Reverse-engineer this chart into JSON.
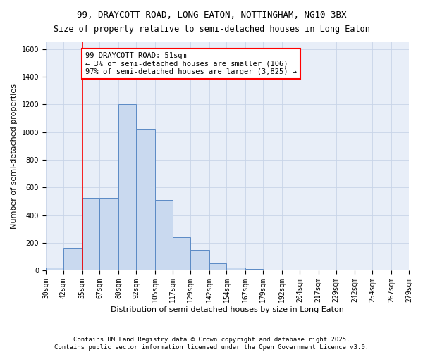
{
  "title": "99, DRAYCOTT ROAD, LONG EATON, NOTTINGHAM, NG10 3BX",
  "subtitle": "Size of property relative to semi-detached houses in Long Eaton",
  "xlabel": "Distribution of semi-detached houses by size in Long Eaton",
  "ylabel": "Number of semi-detached properties",
  "footnote1": "Contains HM Land Registry data © Crown copyright and database right 2025.",
  "footnote2": "Contains public sector information licensed under the Open Government Licence v3.0.",
  "annotation_title": "99 DRAYCOTT ROAD: 51sqm",
  "annotation_line1": "← 3% of semi-detached houses are smaller (106)",
  "annotation_line2": "97% of semi-detached houses are larger (3,825) →",
  "bar_edges": [
    30,
    42,
    55,
    67,
    80,
    92,
    105,
    117,
    129,
    142,
    154,
    167,
    179,
    192,
    204,
    217,
    229,
    242,
    254,
    267,
    279
  ],
  "bar_heights": [
    25,
    165,
    525,
    525,
    1200,
    1025,
    510,
    240,
    150,
    55,
    25,
    15,
    5,
    5,
    2,
    2,
    1,
    1,
    0,
    0
  ],
  "bar_color": "#c9d9ef",
  "bar_edge_color": "#5b8ac5",
  "property_line_x": 55,
  "property_line_color": "red",
  "annotation_box_color": "white",
  "annotation_box_edge_color": "red",
  "ylim": [
    0,
    1650
  ],
  "background_color": "#e8eef8",
  "grid_color": "#c8d4e8",
  "title_fontsize": 9,
  "subtitle_fontsize": 8.5,
  "axis_label_fontsize": 8,
  "tick_fontsize": 7,
  "annotation_fontsize": 7.5,
  "footnote_fontsize": 6.5
}
